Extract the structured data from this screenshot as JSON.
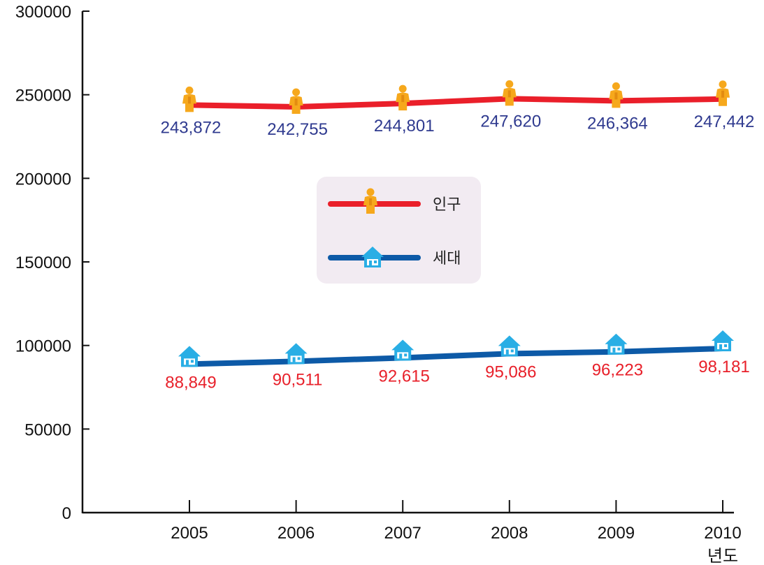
{
  "colors": {
    "population_line": "#ea1f2a",
    "household_line": "#0d5aa7",
    "population_label": "#2f3a8f",
    "household_label": "#e8202a",
    "person_icon": "#f6a81c",
    "house_icon": "#29aee5",
    "legend_bg": "#f2ebf2",
    "axis": "#111111"
  },
  "chart_data": {
    "type": "line",
    "categories": [
      "2005",
      "2006",
      "2007",
      "2008",
      "2009",
      "2010"
    ],
    "x_unit_label": "년도",
    "ylim": [
      0,
      300000
    ],
    "yticks": [
      "0",
      "50000",
      "100000",
      "150000",
      "200000",
      "250000",
      "300000"
    ],
    "grid": false,
    "legend_position": "center",
    "series": [
      {
        "name": "인구",
        "icon": "person-icon",
        "values": [
          243872,
          242755,
          244801,
          247620,
          246364,
          247442
        ],
        "labels": [
          "243,872",
          "242,755",
          "244,801",
          "247,620",
          "246,364",
          "247,442"
        ]
      },
      {
        "name": "세대",
        "icon": "house-icon",
        "values": [
          88849,
          90511,
          92615,
          95086,
          96223,
          98181
        ],
        "labels": [
          "88,849",
          "90,511",
          "92,615",
          "95,086",
          "96,223",
          "98,181"
        ]
      }
    ]
  }
}
